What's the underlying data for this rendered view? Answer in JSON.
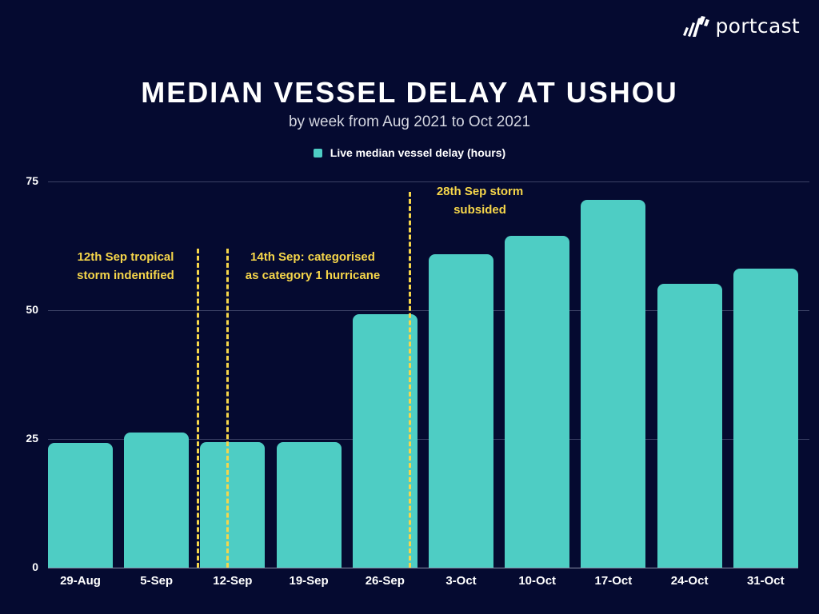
{
  "brand": {
    "logo_text": "portcast"
  },
  "colors": {
    "background": "#050a30",
    "bar": "#4ecdc4",
    "annotation": "#f6d64a",
    "grid": "#3c4266",
    "text": "#ffffff"
  },
  "chart_data": {
    "type": "bar",
    "title": "MEDIAN VESSEL DELAY AT USHOU",
    "subtitle": "by week from Aug 2021 to Oct 2021",
    "xlabel": "",
    "ylabel": "",
    "ylim": [
      0,
      75
    ],
    "yticks": [
      0,
      25,
      50,
      75
    ],
    "grid": true,
    "legend_position": "top",
    "categories": [
      "29-Aug",
      "5-Sep",
      "12-Sep",
      "19-Sep",
      "26-Sep",
      "3-Oct",
      "10-Oct",
      "17-Oct",
      "24-Oct",
      "31-Oct"
    ],
    "series": [
      {
        "name": "Live median vessel delay (hours)",
        "color": "#4ecdc4",
        "values": [
          24.2,
          26.3,
          24.4,
          24.4,
          49.2,
          60.9,
          64.5,
          71.5,
          55.1,
          58.0
        ]
      }
    ],
    "annotations": [
      {
        "text_lines": [
          "12th Sep tropical",
          "storm indentified"
        ],
        "x_position": "between 5-Sep and 12-Sep",
        "style": "dashed-vertical-line"
      },
      {
        "text_lines": [
          "14th Sep: categorised",
          "as category 1 hurricane"
        ],
        "x_position": "within 12-Sep",
        "style": "dashed-vertical-line"
      },
      {
        "text_lines": [
          "28th Sep storm",
          "subsided"
        ],
        "x_position": "right edge of 26-Sep",
        "style": "dashed-vertical-line"
      }
    ]
  }
}
